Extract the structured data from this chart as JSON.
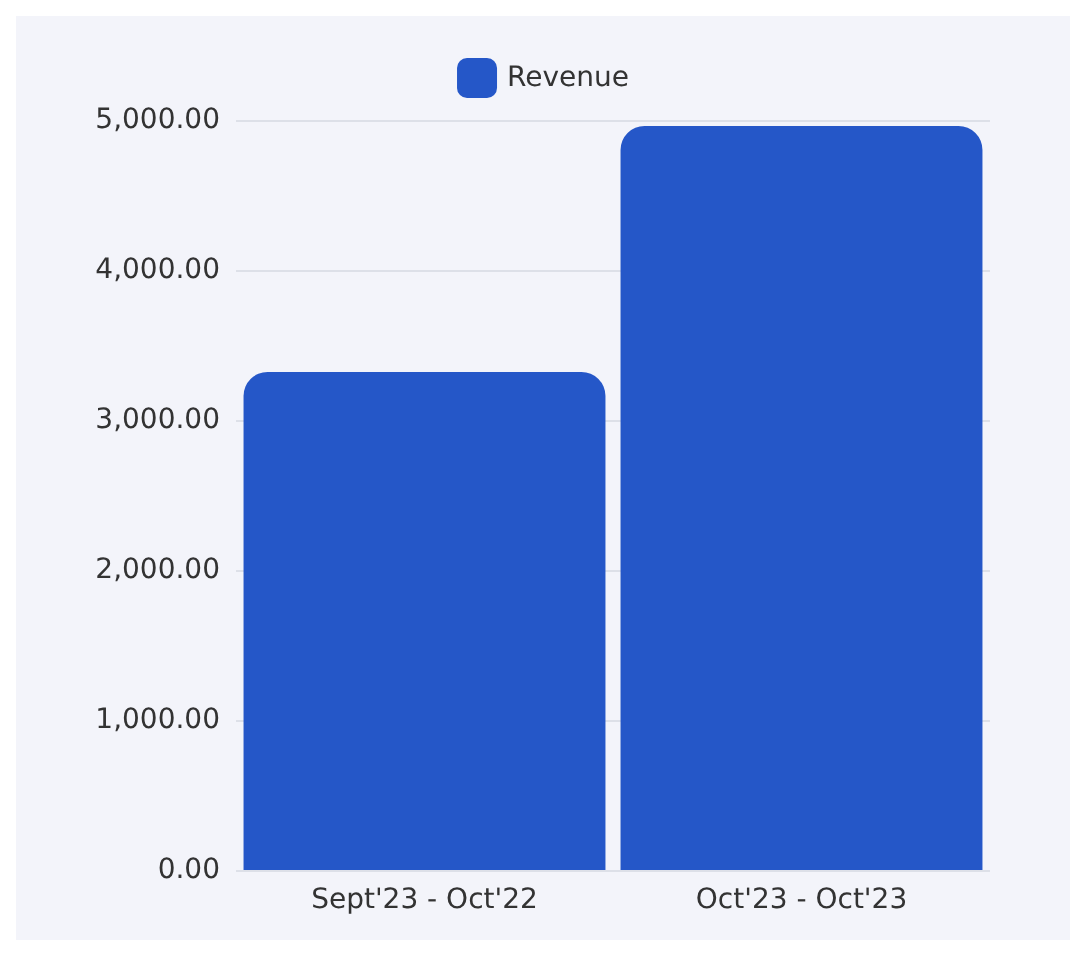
{
  "chart_data": {
    "type": "bar",
    "categories": [
      "Sept'23 - Oct'22",
      "Oct'23 - Oct'23"
    ],
    "series": [
      {
        "name": "Revenue",
        "color": "#2557c8",
        "values": [
          3320,
          4960
        ]
      }
    ],
    "ylim": [
      0,
      5000
    ],
    "yticks": [
      {
        "value": 0,
        "label": "0.00"
      },
      {
        "value": 1000,
        "label": "1,000.00"
      },
      {
        "value": 2000,
        "label": "2,000.00"
      },
      {
        "value": 3000,
        "label": "3,000.00"
      },
      {
        "value": 4000,
        "label": "4,000.00"
      },
      {
        "value": 5000,
        "label": "5,000.00"
      }
    ],
    "grid": "y",
    "legend": "top"
  }
}
